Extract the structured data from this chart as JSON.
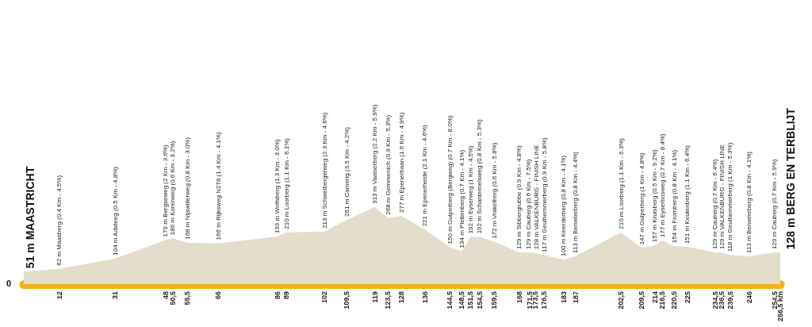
{
  "chart_data": {
    "type": "area",
    "color": "#e4ddcc",
    "x": [
      0,
      12,
      31,
      48,
      50.5,
      55.5,
      66,
      86,
      89,
      102,
      109.5,
      119,
      123.5,
      128,
      136,
      144.5,
      148.5,
      151.5,
      154.5,
      159.5,
      168,
      171.5,
      173.5,
      176.5,
      183,
      187,
      202.5,
      209.5,
      214,
      216.5,
      220.5,
      225,
      234.5,
      236.5,
      239.5,
      246,
      254.5,
      256.5
    ],
    "values": [
      51,
      62,
      104,
      179,
      186,
      168,
      166,
      193,
      210,
      213,
      261,
      313,
      268,
      277,
      221,
      150,
      134,
      192,
      192,
      172,
      129,
      129,
      128,
      117,
      100,
      113,
      210,
      147,
      157,
      177,
      154,
      151,
      129,
      129,
      118,
      113,
      129,
      128
    ],
    "value_labels": [
      "51 m MAASTRICHT",
      "62 m Maasberg (0.4 Km - 4.5%)",
      "104 m Adsteeg (0.5 Km - 4.8%)",
      "179 m Bergseweg (2 Km - 3.6%)",
      "186 m Korenweg (0.6 Km - 3.2%)",
      "168 m Nijswillerweg (0.8 Km - 3.0%)",
      "166 m Rijksweg N278 (1.4 Km - 4.1%)",
      "193 m Wolfsberg (1.3 Km - 3.0%)",
      "210 m Loorberg (1.1 Km - 6.1%)",
      "213 m Schweibergerweg (2.3 Km - 4.6%)",
      "261 m Camerig (3.5 Km - 4.2%)",
      "313 m Vaalserberg (2.2 Km - 5.9%)",
      "268 m Gemmenich (0.9 Km - 5.3%)",
      "277 m Epenerbaan (1.6 Km - 4.9%)",
      "221 m Epenerheide (2.1 Km - 4.6%)",
      "150 m Gulperberg (Bergweg) (0.7 Km - 8.0%)",
      "134 m Plettenberg (0.7 Km - 4.1%)",
      "192 m Eyserweg (1 Km - 4.5%)",
      "192 m Schanternelsweg (0.8 Km - 5.3%)",
      "172 m Vrakelberg (0.6 Km - 5.8%)",
      "129 m Sibbergrubbe (0.9 Km - 4.8%)",
      "129 m Cauberg (0.6 Km - 7.5%)",
      "128 m VALKENBURG - FINISH LINE",
      "117 m Geulhemmerberg (0.9 Km - 5.8%)",
      "100 m Keerderberg (0.8 Km - 4.1%)",
      "113 m Bemelerberg (0.8 Km - 4.4%)",
      "210 m Loorberg (1.1 Km - 6.3%)",
      "147 m Gulperberg (1 Km - 4.8%)",
      "157 m Kruisberg (0.5 Km - 9.2%)",
      "177 m Eyserbosweg (0.7 Km - 8.4%)",
      "154 m Fromberg (0.8 Km - 4.1%)",
      "151 m Keutenberg (1.1 Km - 6.4%)",
      "129 m Cauberg (0.7 Km - 6.4%)",
      "129 m VALKENBURG - FINISH LINE",
      "118 m Geulhemmerberg (1 Km - 5.3%)",
      "113 m Bemelerberg (0.8 Km - 4.1%)",
      "129 m Cauberg (0.7 Km - 5.9%)",
      "128 m BERG EN TERBLIJT"
    ],
    "xlim": [
      0,
      256.5
    ],
    "xticks": [
      12,
      31,
      48,
      {
        "value": 50.5,
        "label": "50,5"
      },
      {
        "value": 55.5,
        "label": "55,5"
      },
      66,
      86,
      89,
      102,
      {
        "value": 109.5,
        "label": "109,5"
      },
      119,
      {
        "value": 123.5,
        "label": "123,5"
      },
      128,
      136,
      {
        "value": 144.5,
        "label": "144,5"
      },
      {
        "value": 148.5,
        "label": "148,5"
      },
      {
        "value": 151.5,
        "label": "151,5"
      },
      {
        "value": 154.5,
        "label": "154,5"
      },
      {
        "value": 159.5,
        "label": "159,5"
      },
      168,
      {
        "value": 171.5,
        "label": "171,5"
      },
      {
        "value": 173.5,
        "label": "173,5"
      },
      {
        "value": 176.5,
        "label": "176,5"
      },
      183,
      187,
      {
        "value": 202.5,
        "label": "202,5"
      },
      {
        "value": 209.5,
        "label": "209,5"
      },
      214,
      {
        "value": 216.5,
        "label": "216,5"
      },
      {
        "value": 220.5,
        "label": "220,5"
      },
      225,
      {
        "value": 234.5,
        "label": "234,5"
      },
      {
        "value": 236.5,
        "label": "236,5"
      },
      {
        "value": 239.5,
        "label": "239,5"
      },
      246,
      {
        "value": 254.5,
        "label": "254,5"
      },
      {
        "value": 256.5,
        "label": "256,5 km"
      }
    ],
    "annotations": [
      "0"
    ]
  }
}
